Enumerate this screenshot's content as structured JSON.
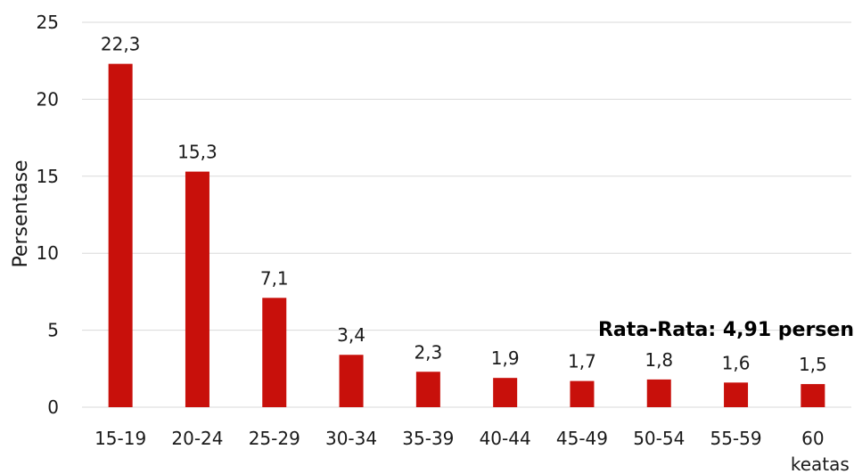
{
  "chart_data": {
    "type": "bar",
    "categories": [
      "15-19",
      "20-24",
      "25-29",
      "30-34",
      "35-39",
      "40-44",
      "45-49",
      "50-54",
      "55-59",
      "60 keatas"
    ],
    "category_lines": [
      [
        "15-19"
      ],
      [
        "20-24"
      ],
      [
        "25-29"
      ],
      [
        "30-34"
      ],
      [
        "35-39"
      ],
      [
        "40-44"
      ],
      [
        "45-49"
      ],
      [
        "50-54"
      ],
      [
        "55-59"
      ],
      [
        "60",
        "keatas"
      ]
    ],
    "values": [
      22.3,
      15.3,
      7.1,
      3.4,
      2.3,
      1.9,
      1.7,
      1.8,
      1.6,
      1.5
    ],
    "value_labels": [
      "22,3",
      "15,3",
      "7,1",
      "3,4",
      "2,3",
      "1,9",
      "1,7",
      "1,8",
      "1,6",
      "1,5"
    ],
    "ylabel": "Persentase",
    "ylim": [
      0,
      25
    ],
    "yticks": [
      0,
      5,
      10,
      15,
      20,
      25
    ],
    "grid": true,
    "legend": "none",
    "annotation": "Rata-Rata: 4,91 persen",
    "bar_color": "#c8100b"
  }
}
